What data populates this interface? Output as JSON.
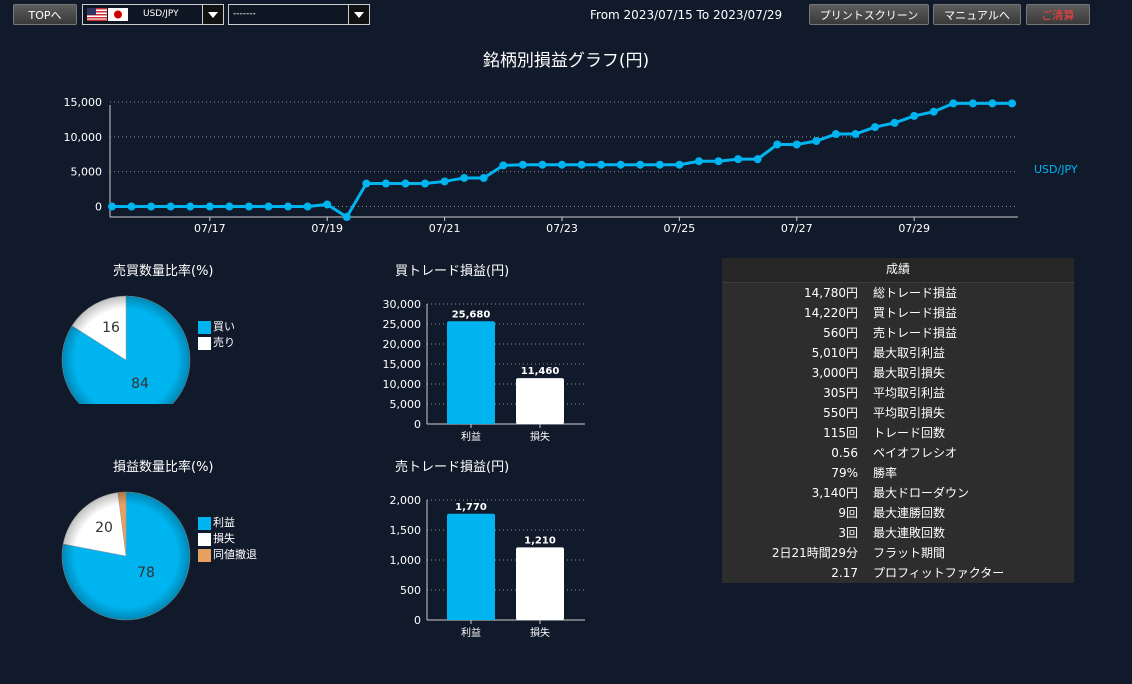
{
  "toolbar": {
    "top_label": "TOPへ",
    "pair_value": "USD/JPY",
    "second_value": "-------",
    "date_range": "From 2023/07/15 To 2023/07/29",
    "print_label": "プリントスクリーン",
    "manual_label": "マニュアルへ",
    "settle_label": "ご清算"
  },
  "page_title": "銘柄別損益グラフ(円)",
  "line_chart": {
    "type": "line",
    "series_name": "USD/JPY",
    "color": "#00b4f0",
    "x_tick_labels": [
      "07/17",
      "07/19",
      "07/21",
      "07/23",
      "07/25",
      "07/27",
      "07/29"
    ],
    "y_tick_labels": [
      "15,000",
      "10,000",
      "5,000",
      "0"
    ],
    "ylim": [
      -1500,
      16000
    ],
    "values": [
      0,
      0,
      0,
      0,
      0,
      0,
      0,
      0,
      0,
      0,
      0,
      300,
      -1500,
      3300,
      3300,
      3300,
      3300,
      3600,
      4100,
      4100,
      5900,
      6000,
      6000,
      6000,
      6000,
      6000,
      6000,
      6000,
      6000,
      6000,
      6500,
      6500,
      6800,
      6800,
      8900,
      8900,
      9400,
      10400,
      10400,
      11400,
      12000,
      13000,
      13600,
      14800,
      14800,
      14800,
      14800
    ]
  },
  "pie1": {
    "title": "売買数量比率(%)",
    "slices": [
      {
        "name": "買い",
        "value": 84,
        "label": "84",
        "color": "#00b4f0"
      },
      {
        "name": "売り",
        "value": 16,
        "label": "16",
        "color": "#ffffff"
      }
    ]
  },
  "pie2": {
    "title": "損益数量比率(%)",
    "slices": [
      {
        "name": "利益",
        "value": 78,
        "label": "78",
        "color": "#00b4f0"
      },
      {
        "name": "損失",
        "value": 20,
        "label": "20",
        "color": "#ffffff"
      },
      {
        "name": "同値撤退",
        "value": 2,
        "label": "",
        "color": "#e8a060"
      }
    ]
  },
  "bar1": {
    "title": "買トレード損益(円)",
    "type": "bar",
    "categories": [
      "利益",
      "損失"
    ],
    "values": [
      25680,
      11460
    ],
    "value_labels": [
      "25,680",
      "11,460"
    ],
    "y_tick_labels": [
      "30,000",
      "25,000",
      "20,000",
      "15,000",
      "10,000",
      "5,000",
      "0"
    ],
    "ylim": [
      0,
      30000
    ]
  },
  "bar2": {
    "title": "売トレード損益(円)",
    "type": "bar",
    "categories": [
      "利益",
      "損失"
    ],
    "values": [
      1770,
      1210
    ],
    "value_labels": [
      "1,770",
      "1,210"
    ],
    "y_tick_labels": [
      "2,000",
      "1,500",
      "1,000",
      "500",
      "0"
    ],
    "ylim": [
      0,
      2000
    ]
  },
  "stats": {
    "header": "成績",
    "rows": [
      {
        "value": "14,780円",
        "label": "総トレード損益"
      },
      {
        "value": "14,220円",
        "label": "買トレード損益"
      },
      {
        "value": "560円",
        "label": "売トレード損益"
      },
      {
        "value": "5,010円",
        "label": "最大取引利益"
      },
      {
        "value": "3,000円",
        "label": "最大取引損失"
      },
      {
        "value": "305円",
        "label": "平均取引利益"
      },
      {
        "value": "550円",
        "label": "平均取引損失"
      },
      {
        "value": "115回",
        "label": "トレード回数"
      },
      {
        "value": "0.56",
        "label": "ペイオフレシオ"
      },
      {
        "value": "79%",
        "label": "勝率"
      },
      {
        "value": "3,140円",
        "label": "最大ドローダウン"
      },
      {
        "value": "9回",
        "label": "最大連勝回数"
      },
      {
        "value": "3回",
        "label": "最大連敗回数"
      },
      {
        "value": "2日21時間29分",
        "label": "フラット期間"
      },
      {
        "value": "2.17",
        "label": "プロフィットファクター"
      }
    ]
  },
  "chart_data": [
    {
      "type": "line",
      "series": [
        {
          "name": "USD/JPY",
          "values": [
            0,
            0,
            0,
            0,
            0,
            0,
            0,
            0,
            0,
            0,
            0,
            300,
            -1500,
            3300,
            3300,
            3300,
            3300,
            3600,
            4100,
            4100,
            5900,
            6000,
            6000,
            6000,
            6000,
            6000,
            6000,
            6000,
            6000,
            6000,
            6500,
            6500,
            6800,
            6800,
            8900,
            8900,
            9400,
            10400,
            10400,
            11400,
            12000,
            13000,
            13600,
            14800,
            14800,
            14800,
            14800
          ]
        }
      ],
      "x_ticks": [
        "07/17",
        "07/19",
        "07/21",
        "07/23",
        "07/25",
        "07/27",
        "07/29"
      ]
    },
    {
      "type": "pie",
      "title": "売買数量比率(%)",
      "slices": [
        {
          "name": "買い",
          "value": 84
        },
        {
          "name": "売り",
          "value": 16
        }
      ]
    },
    {
      "type": "pie",
      "title": "損益数量比率(%)",
      "slices": [
        {
          "name": "利益",
          "value": 78
        },
        {
          "name": "損失",
          "value": 20
        },
        {
          "name": "同値撤退",
          "value": 2
        }
      ]
    },
    {
      "type": "bar",
      "title": "買トレード損益(円)",
      "categories": [
        "利益",
        "損失"
      ],
      "values": [
        25680,
        11460
      ],
      "ylim": [
        0,
        30000
      ]
    },
    {
      "type": "bar",
      "title": "売トレード損益(円)",
      "categories": [
        "利益",
        "損失"
      ],
      "values": [
        1770,
        1210
      ],
      "ylim": [
        0,
        2000
      ]
    }
  ]
}
